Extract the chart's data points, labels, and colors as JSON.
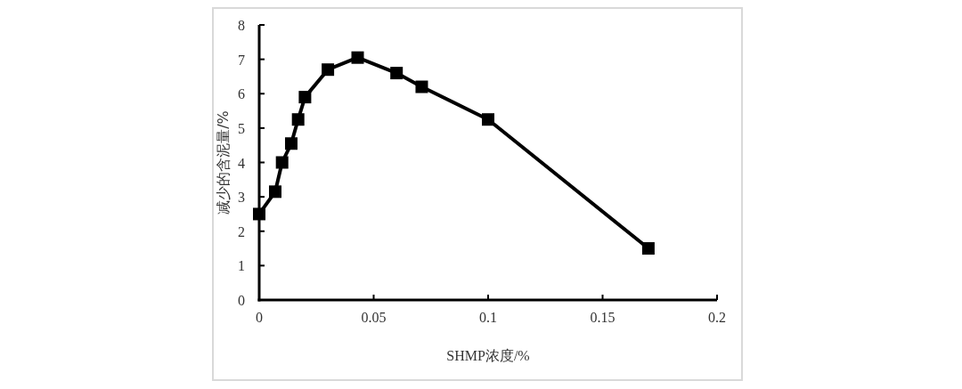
{
  "chart_data": {
    "type": "line",
    "xlabel": "SHMP浓度/%",
    "ylabel": "减少的含泥量/%",
    "x": [
      0,
      0.007,
      0.01,
      0.014,
      0.017,
      0.02,
      0.03,
      0.043,
      0.06,
      0.071,
      0.1,
      0.17
    ],
    "series": [
      {
        "color": "#000000",
        "values": [
          2.5,
          3.15,
          4.0,
          4.55,
          5.25,
          5.9,
          6.7,
          7.05,
          6.6,
          6.2,
          5.25,
          1.5
        ]
      }
    ],
    "xlim": [
      0,
      0.2
    ],
    "xticks": [
      0,
      0.05,
      0.1,
      0.15,
      0.2
    ],
    "ylim": [
      0,
      8
    ],
    "yticks": [
      0,
      1,
      2,
      3,
      4,
      5,
      6,
      7,
      8
    ],
    "marker": "square",
    "line_style": "solid",
    "grid": false
  }
}
